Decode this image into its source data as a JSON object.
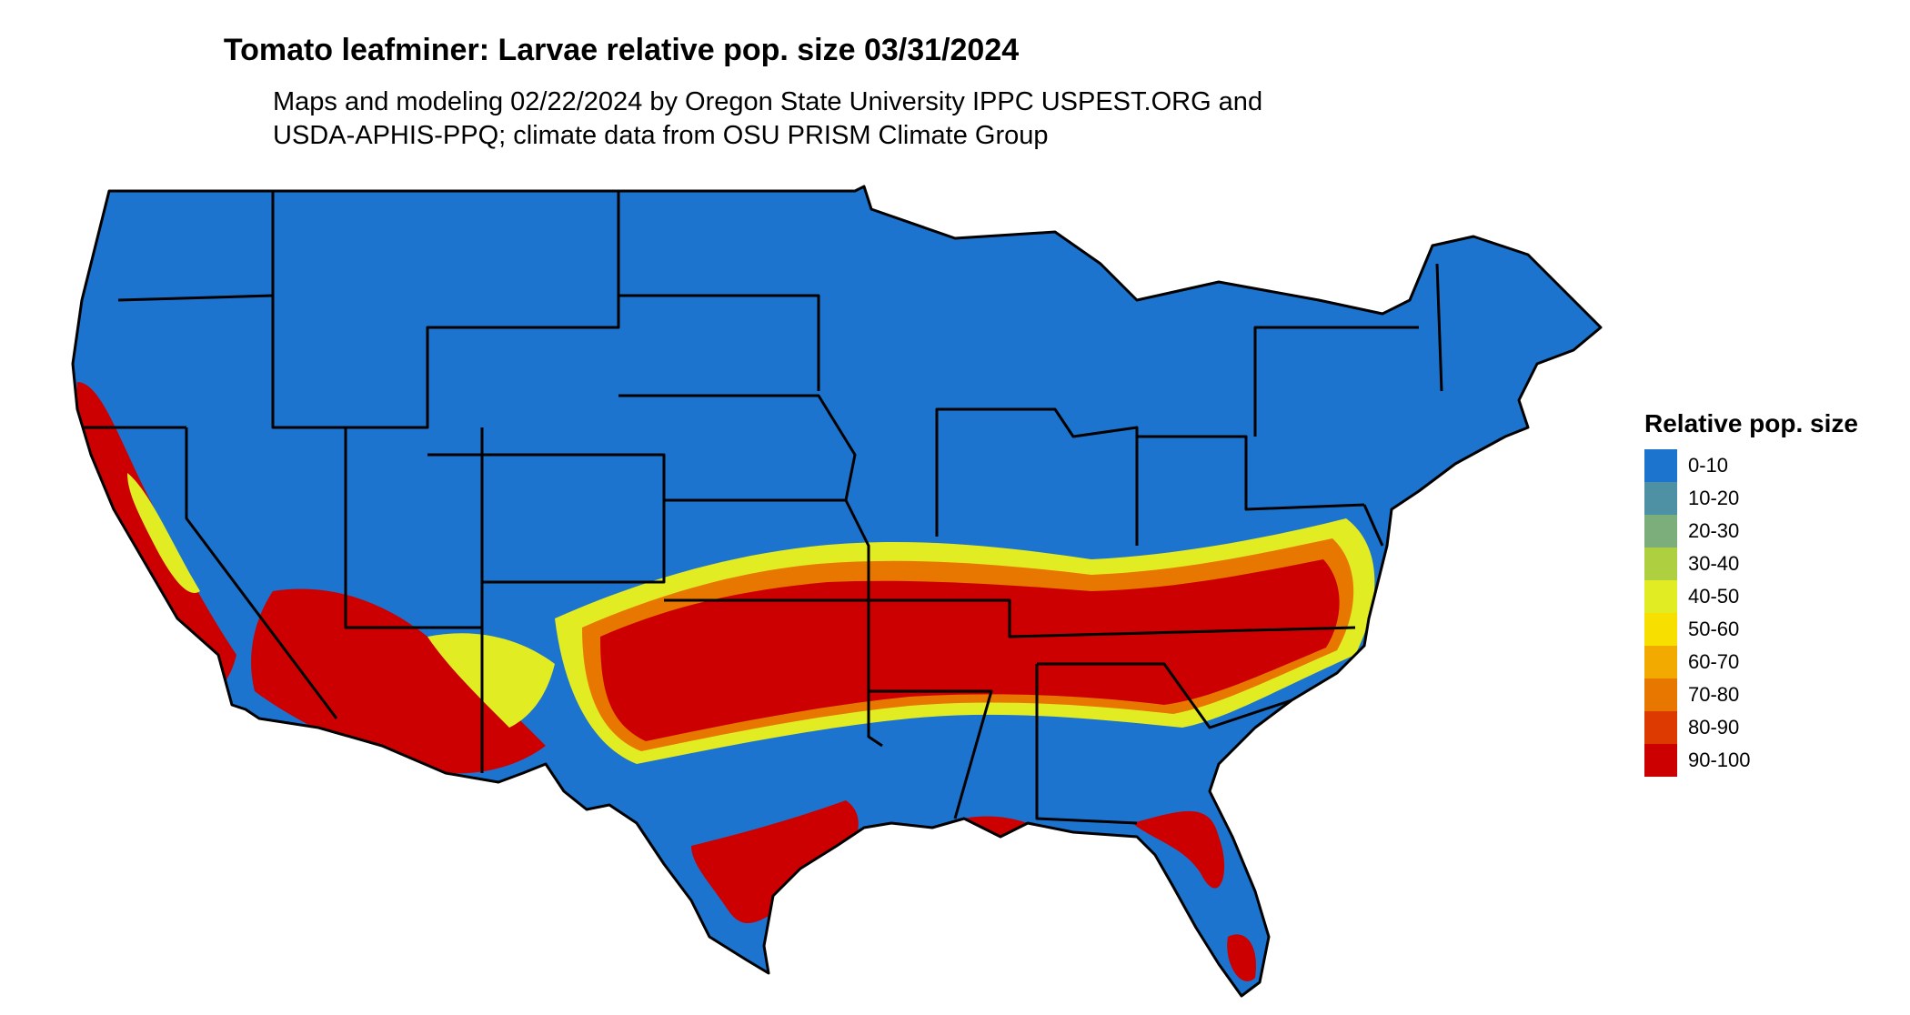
{
  "header": {
    "title": "Tomato leafminer: Larvae relative pop. size 03/31/2024",
    "subtitle_lines": [
      "Maps and modeling 02/22/2024 by Oregon State University IPPC USPEST.ORG and",
      "USDA-APHIS-PPQ; climate data from OSU PRISM Climate Group"
    ]
  },
  "legend": {
    "title": "Relative pop. size",
    "items": [
      {
        "label": "0-10",
        "color": "#1c74cf"
      },
      {
        "label": "10-20",
        "color": "#4e91a4"
      },
      {
        "label": "20-30",
        "color": "#7bae7a"
      },
      {
        "label": "30-40",
        "color": "#aecf3f"
      },
      {
        "label": "40-50",
        "color": "#e2ec22"
      },
      {
        "label": "50-60",
        "color": "#f7e000"
      },
      {
        "label": "60-70",
        "color": "#f2a900"
      },
      {
        "label": "70-80",
        "color": "#e87700"
      },
      {
        "label": "80-90",
        "color": "#dc3a00"
      },
      {
        "label": "90-100",
        "color": "#cc0000"
      }
    ]
  },
  "map": {
    "region": "Contiguous United States",
    "background_class": "0-10",
    "highlight_class": "90-100",
    "border_color": "#000000"
  }
}
